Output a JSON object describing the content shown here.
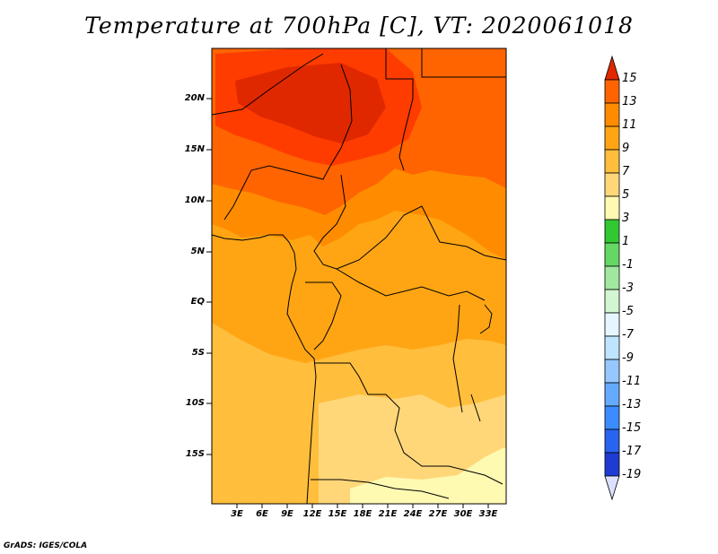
{
  "title": "Temperature at 700hPa [C], VT: 2020061018",
  "credit": "GrADS: IGES/COLA",
  "map": {
    "y_ticks": [
      "20N",
      "15N",
      "10N",
      "5N",
      "EQ",
      "5S",
      "10S",
      "15S"
    ],
    "x_ticks": [
      "3E",
      "6E",
      "9E",
      "12E",
      "15E",
      "18E",
      "21E",
      "24E",
      "27E",
      "30E",
      "33E"
    ],
    "lon_range": [
      0,
      35
    ],
    "lat_range": [
      -20,
      25
    ]
  },
  "colorbar": {
    "labels": [
      "15",
      "13",
      "11",
      "9",
      "7",
      "5",
      "3",
      "1",
      "-1",
      "-3",
      "-5",
      "-7",
      "-9",
      "-11",
      "-13",
      "-15",
      "-17",
      "-19"
    ],
    "colors": [
      "#ff3c00",
      "#ff6400",
      "#ff8c00",
      "#ffa514",
      "#ffbe3c",
      "#ffd779",
      "#fffab2",
      "#32c832",
      "#64d764",
      "#a0e8a0",
      "#d2f5d2",
      "#e6f5ff",
      "#bee4ff",
      "#96c8ff",
      "#64aaff",
      "#3c8cff",
      "#2864f0",
      "#1e3cd2",
      "#1414a0"
    ],
    "top_color": "#e02800",
    "bottom_color": "#000064"
  }
}
